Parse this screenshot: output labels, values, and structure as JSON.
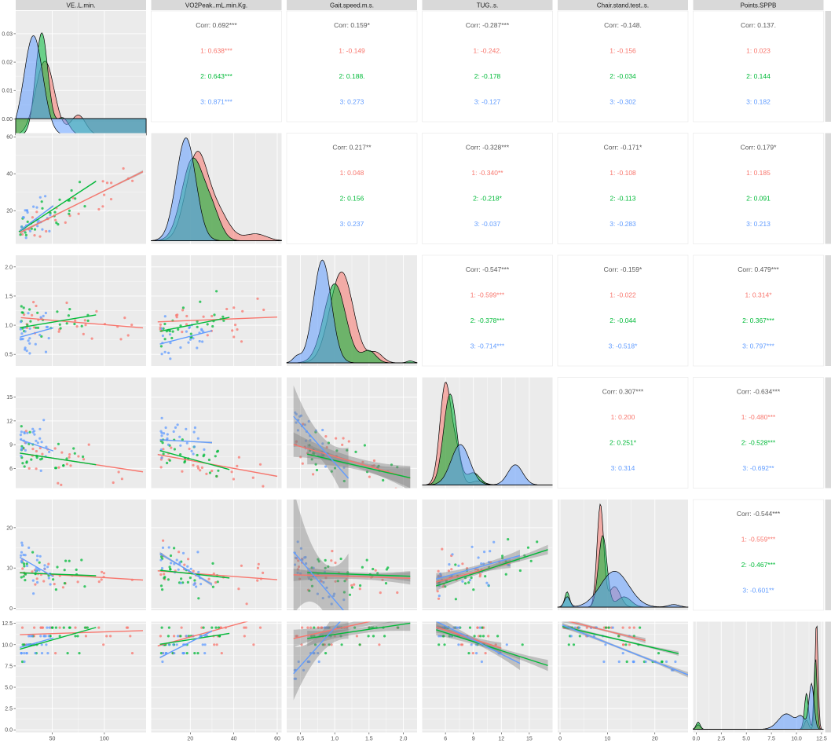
{
  "chart_data": {
    "type": "scatter",
    "variables": [
      "VE..L.min.",
      "VO2Peak..mL.min.Kg.",
      "Gait.speed.m.s.",
      "TUG..s.",
      "Chair.stand.test..s.",
      "Points.SPPB"
    ],
    "groups": [
      {
        "name": "1",
        "color": "#F8766D"
      },
      {
        "name": "2",
        "color": "#00BA38"
      },
      {
        "name": "3",
        "color": "#619CFF"
      }
    ],
    "axes": [
      {
        "ticks": [
          50,
          100
        ],
        "tick_labels": [
          "50",
          "100"
        ],
        "range": [
          15,
          140
        ]
      },
      {
        "ticks": [
          20,
          40,
          60
        ],
        "tick_labels": [
          "20",
          "40",
          "60"
        ],
        "range": [
          2,
          62
        ]
      },
      {
        "ticks": [
          0.5,
          1.0,
          1.5,
          2.0
        ],
        "tick_labels": [
          "0.5",
          "1.0",
          "1.5",
          "2.0"
        ],
        "range": [
          0.3,
          2.2
        ]
      },
      {
        "ticks": [
          6,
          9,
          12,
          15
        ],
        "tick_labels": [
          "6",
          "9",
          "12",
          "15"
        ],
        "range": [
          3.5,
          17.5
        ]
      },
      {
        "ticks": [
          0,
          10,
          20
        ],
        "tick_labels": [
          "0",
          "10",
          "20"
        ],
        "range": [
          -0.5,
          27
        ]
      },
      {
        "ticks": [
          0.0,
          2.5,
          5.0,
          7.5,
          10.0,
          12.5
        ],
        "tick_labels": [
          "0.0",
          "2.5",
          "5.0",
          "7.5",
          "10.0",
          "12.5"
        ],
        "range": [
          -0.3,
          12.7
        ]
      }
    ],
    "density_axis": {
      "ticks": [
        0.0,
        0.01,
        0.02,
        0.03
      ],
      "tick_labels": [
        "0.00",
        "0.01",
        "0.02",
        "0.03"
      ],
      "range": [
        -0.001,
        0.038
      ]
    },
    "densities": [
      {
        "var": 0,
        "series": [
          {
            "group": "1",
            "peaks": [
              [
                43,
                0.026,
                9
              ],
              [
                75,
                0.007,
                7
              ]
            ]
          },
          {
            "group": "2",
            "peaks": [
              [
                40,
                0.036,
                6
              ],
              [
                60,
                0.006,
                6
              ]
            ]
          },
          {
            "group": "3",
            "peaks": [
              [
                32,
                0.035,
                9
              ]
            ]
          }
        ]
      },
      {
        "var": 1,
        "series": [
          {
            "group": "1",
            "peaks": [
              [
                23,
                0.05,
                5
              ],
              [
                33,
                0.015,
                5
              ],
              [
                50,
                0.004,
                5
              ]
            ]
          },
          {
            "group": "2",
            "peaks": [
              [
                21,
                0.047,
                5
              ],
              [
                30,
                0.015,
                4
              ]
            ]
          },
          {
            "group": "3",
            "peaks": [
              [
                18,
                0.06,
                4.5
              ]
            ]
          }
        ]
      },
      {
        "var": 2,
        "series": [
          {
            "group": "1",
            "peaks": [
              [
                1.1,
                2.3,
                0.17
              ],
              [
                1.6,
                0.25,
                0.1
              ]
            ]
          },
          {
            "group": "2",
            "peaks": [
              [
                1.0,
                2.0,
                0.16
              ],
              [
                1.5,
                0.3,
                0.1
              ],
              [
                2.1,
                0.05,
                0.05
              ]
            ]
          },
          {
            "group": "3",
            "peaks": [
              [
                0.82,
                2.6,
                0.13
              ],
              [
                0.45,
                0.15,
                0.06
              ]
            ]
          }
        ]
      },
      {
        "var": 3,
        "series": [
          {
            "group": "1",
            "peaks": [
              [
                6.0,
                0.5,
                0.6
              ],
              [
                7.2,
                0.15,
                0.5
              ],
              [
                9.5,
                0.02,
                0.7
              ]
            ]
          },
          {
            "group": "2",
            "peaks": [
              [
                6.5,
                0.45,
                0.7
              ],
              [
                9.0,
                0.06,
                0.7
              ]
            ]
          },
          {
            "group": "3",
            "peaks": [
              [
                7.6,
                0.2,
                1.0
              ],
              [
                13.5,
                0.1,
                0.8
              ]
            ]
          }
        ]
      },
      {
        "var": 4,
        "series": [
          {
            "group": "1",
            "peaks": [
              [
                8.5,
                0.2,
                0.7
              ],
              [
                11.5,
                0.04,
                1.2
              ]
            ]
          },
          {
            "group": "2",
            "peaks": [
              [
                9.0,
                0.14,
                0.9
              ],
              [
                1.5,
                0.03,
                0.5
              ],
              [
                13.5,
                0.02,
                1.5
              ]
            ]
          },
          {
            "group": "3",
            "peaks": [
              [
                11.5,
                0.07,
                3.0
              ],
              [
                1.5,
                0.02,
                0.6
              ],
              [
                24,
                0.005,
                1.2
              ]
            ]
          }
        ]
      },
      {
        "var": 5,
        "series": [
          {
            "group": "1",
            "peaks": [
              [
                12.0,
                1.2,
                0.15
              ],
              [
                11.0,
                0.1,
                0.2
              ],
              [
                0.2,
                0.05,
                0.2
              ]
            ]
          },
          {
            "group": "2",
            "peaks": [
              [
                11.9,
                0.8,
                0.15
              ],
              [
                11.0,
                0.4,
                0.2
              ],
              [
                0.2,
                0.08,
                0.2
              ]
            ]
          },
          {
            "group": "3",
            "peaks": [
              [
                11.5,
                0.5,
                0.25
              ],
              [
                9.0,
                0.17,
                0.8
              ],
              [
                10.5,
                0.12,
                0.4
              ]
            ]
          }
        ]
      }
    ],
    "regressions": [
      {
        "row": 1,
        "col": 0,
        "fits": [
          [
            2.8,
            0.28,
            0.3,
            19,
            137
          ],
          [
            1.9,
            0.37,
            0.17,
            18,
            92
          ],
          [
            1.2,
            0.42,
            0.24,
            19,
            51
          ]
        ]
      },
      {
        "row": 2,
        "col": 0,
        "fits": [
          [
            1.16,
            -0.0015,
            0.0008,
            20,
            137
          ],
          [
            0.9,
            0.003,
            0.0012,
            19,
            92
          ],
          [
            0.7,
            0.005,
            0.002,
            19,
            51
          ]
        ]
      },
      {
        "row": 2,
        "col": 1,
        "fits": [
          [
            1.05,
            0.0015,
            0.0009,
            5,
            60
          ],
          [
            0.85,
            0.0075,
            0.003,
            6,
            38
          ],
          [
            0.62,
            0.0095,
            0.004,
            6,
            30
          ]
        ]
      },
      {
        "row": 3,
        "col": 0,
        "fits": [
          [
            8.3,
            -0.02,
            0.011,
            19,
            137
          ],
          [
            8.3,
            -0.02,
            0.009,
            19,
            92
          ],
          [
            10.5,
            -0.045,
            0.02,
            19,
            51
          ]
        ]
      },
      {
        "row": 3,
        "col": 1,
        "fits": [
          [
            8.0,
            -0.05,
            0.03,
            5,
            60
          ],
          [
            8.7,
            -0.075,
            0.03,
            6,
            38
          ],
          [
            9.7,
            -0.015,
            0.05,
            6,
            30
          ]
        ]
      },
      {
        "row": 3,
        "col": 2,
        "fits": [
          [
            10.0,
            -2.5,
            0.6,
            0.4,
            2.1
          ],
          [
            9.0,
            -2.0,
            0.5,
            0.6,
            2.1
          ],
          [
            16.5,
            -9.8,
            1.5,
            0.4,
            1.2
          ]
        ]
      },
      {
        "row": 4,
        "col": 0,
        "fits": [
          [
            9.2,
            -0.016,
            0.015,
            19,
            137
          ],
          [
            9.0,
            -0.01,
            0.02,
            19,
            92
          ],
          [
            15.5,
            -0.15,
            0.07,
            19,
            51
          ]
        ]
      },
      {
        "row": 4,
        "col": 1,
        "fits": [
          [
            9.5,
            -0.04,
            0.03,
            5,
            60
          ],
          [
            9.8,
            -0.06,
            0.04,
            6,
            38
          ],
          [
            15.5,
            -0.32,
            0.17,
            6,
            30
          ]
        ]
      },
      {
        "row": 4,
        "col": 2,
        "fits": [
          [
            8.5,
            -0.5,
            0.6,
            0.4,
            2.1
          ],
          [
            9.2,
            -0.6,
            0.5,
            0.6,
            2.1
          ],
          [
            22,
            -20,
            6,
            0.4,
            1.2
          ]
        ]
      },
      {
        "row": 4,
        "col": 3,
        "fits": [
          [
            3.5,
            0.6,
            0.5,
            5,
            13
          ],
          [
            1.8,
            0.75,
            0.45,
            5,
            17
          ],
          [
            4.0,
            0.65,
            0.55,
            5,
            14
          ]
        ]
      },
      {
        "row": 5,
        "col": 0,
        "fits": [
          [
            11.1,
            0.004,
            0.007,
            19,
            137
          ],
          [
            8.8,
            0.035,
            0.009,
            19,
            92
          ],
          [
            9.0,
            0.035,
            0.012,
            19,
            51
          ]
        ]
      },
      {
        "row": 5,
        "col": 1,
        "fits": [
          [
            9.5,
            0.07,
            0.02,
            5,
            60
          ],
          [
            9.8,
            0.04,
            0.03,
            6,
            38
          ],
          [
            7.7,
            0.13,
            0.04,
            6,
            30
          ]
        ]
      },
      {
        "row": 5,
        "col": 2,
        "fits": [
          [
            10.0,
            1.8,
            0.4,
            0.4,
            2.1
          ],
          [
            10.0,
            1.2,
            0.35,
            0.6,
            2.1
          ],
          [
            3.0,
            9.0,
            1.2,
            0.4,
            1.2
          ]
        ]
      },
      {
        "row": 5,
        "col": 3,
        "fits": [
          [
            13.8,
            -0.35,
            0.25,
            5,
            12
          ],
          [
            13.5,
            -0.35,
            0.25,
            5,
            17
          ],
          [
            15.5,
            -0.55,
            0.3,
            5,
            14
          ]
        ]
      },
      {
        "row": 5,
        "col": 4,
        "fits": [
          [
            13.0,
            -0.14,
            0.12,
            0.5,
            18
          ],
          [
            12.2,
            -0.13,
            0.1,
            0.5,
            25
          ],
          [
            12.4,
            -0.22,
            0.12,
            0.5,
            27
          ]
        ]
      }
    ],
    "correlations": [
      {
        "row": 0,
        "col": 1,
        "overall": "0.692***",
        "g1": "0.638***",
        "g2": "0.643***",
        "g3": "0.871***"
      },
      {
        "row": 0,
        "col": 2,
        "overall": "0.159*",
        "g1": "-0.149",
        "g2": "0.188.",
        "g3": "0.273"
      },
      {
        "row": 0,
        "col": 3,
        "overall": "-0.287***",
        "g1": "-0.242.",
        "g2": "-0.178",
        "g3": "-0.127"
      },
      {
        "row": 0,
        "col": 4,
        "overall": "-0.148.",
        "g1": "-0.156",
        "g2": "-0.034",
        "g3": "-0.302"
      },
      {
        "row": 0,
        "col": 5,
        "overall": "0.137.",
        "g1": "0.023",
        "g2": "0.144",
        "g3": "0.182"
      },
      {
        "row": 1,
        "col": 2,
        "overall": "0.217**",
        "g1": "0.048",
        "g2": "0.156",
        "g3": "0.237"
      },
      {
        "row": 1,
        "col": 3,
        "overall": "-0.328***",
        "g1": "-0.340**",
        "g2": "-0.218*",
        "g3": "-0.037"
      },
      {
        "row": 1,
        "col": 4,
        "overall": "-0.171*",
        "g1": "-0.108",
        "g2": "-0.113",
        "g3": "-0.283"
      },
      {
        "row": 1,
        "col": 5,
        "overall": "0.179*",
        "g1": "0.185",
        "g2": "0.091",
        "g3": "0.213"
      },
      {
        "row": 2,
        "col": 3,
        "overall": "-0.547***",
        "g1": "-0.599***",
        "g2": "-0.378***",
        "g3": "-0.714***"
      },
      {
        "row": 2,
        "col": 4,
        "overall": "-0.159*",
        "g1": "-0.022",
        "g2": "-0.044",
        "g3": "-0.518*"
      },
      {
        "row": 2,
        "col": 5,
        "overall": "0.479***",
        "g1": "0.314*",
        "g2": "0.367***",
        "g3": "0.797***"
      },
      {
        "row": 3,
        "col": 4,
        "overall": "0.307***",
        "g1": "0.200",
        "g2": "0.251*",
        "g3": "0.314"
      },
      {
        "row": 3,
        "col": 5,
        "overall": "-0.634***",
        "g1": "-0.480***",
        "g2": "-0.528***",
        "g3": "-0.692**"
      },
      {
        "row": 4,
        "col": 5,
        "overall": "-0.544***",
        "g1": "-0.559***",
        "g2": "-0.467***",
        "g3": "-0.601**"
      }
    ],
    "corr_prefix": "Corr: ",
    "group_prefixes": [
      "1: ",
      "2: ",
      "3: "
    ],
    "grid": true,
    "legend": "none"
  }
}
